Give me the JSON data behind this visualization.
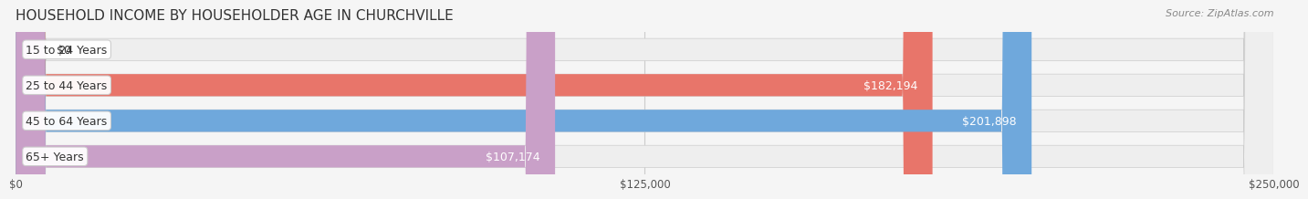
{
  "title": "HOUSEHOLD INCOME BY HOUSEHOLDER AGE IN CHURCHVILLE",
  "source": "Source: ZipAtlas.com",
  "categories": [
    "15 to 24 Years",
    "25 to 44 Years",
    "45 to 64 Years",
    "65+ Years"
  ],
  "values": [
    0,
    182194,
    201898,
    107174
  ],
  "bar_colors": [
    "#f5cfa0",
    "#e8756a",
    "#6fa8dc",
    "#c9a0c8"
  ],
  "label_colors": [
    "#555555",
    "#ffffff",
    "#ffffff",
    "#555555"
  ],
  "value_labels": [
    "$0",
    "$182,194",
    "$201,898",
    "$107,174"
  ],
  "x_max": 250000,
  "x_ticks": [
    0,
    125000,
    250000
  ],
  "x_tick_labels": [
    "$0",
    "$125,000",
    "$250,000"
  ],
  "background_color": "#f5f5f5",
  "bar_background_color": "#eeeeee",
  "title_fontsize": 11,
  "source_fontsize": 8,
  "label_fontsize": 9,
  "value_fontsize": 9
}
